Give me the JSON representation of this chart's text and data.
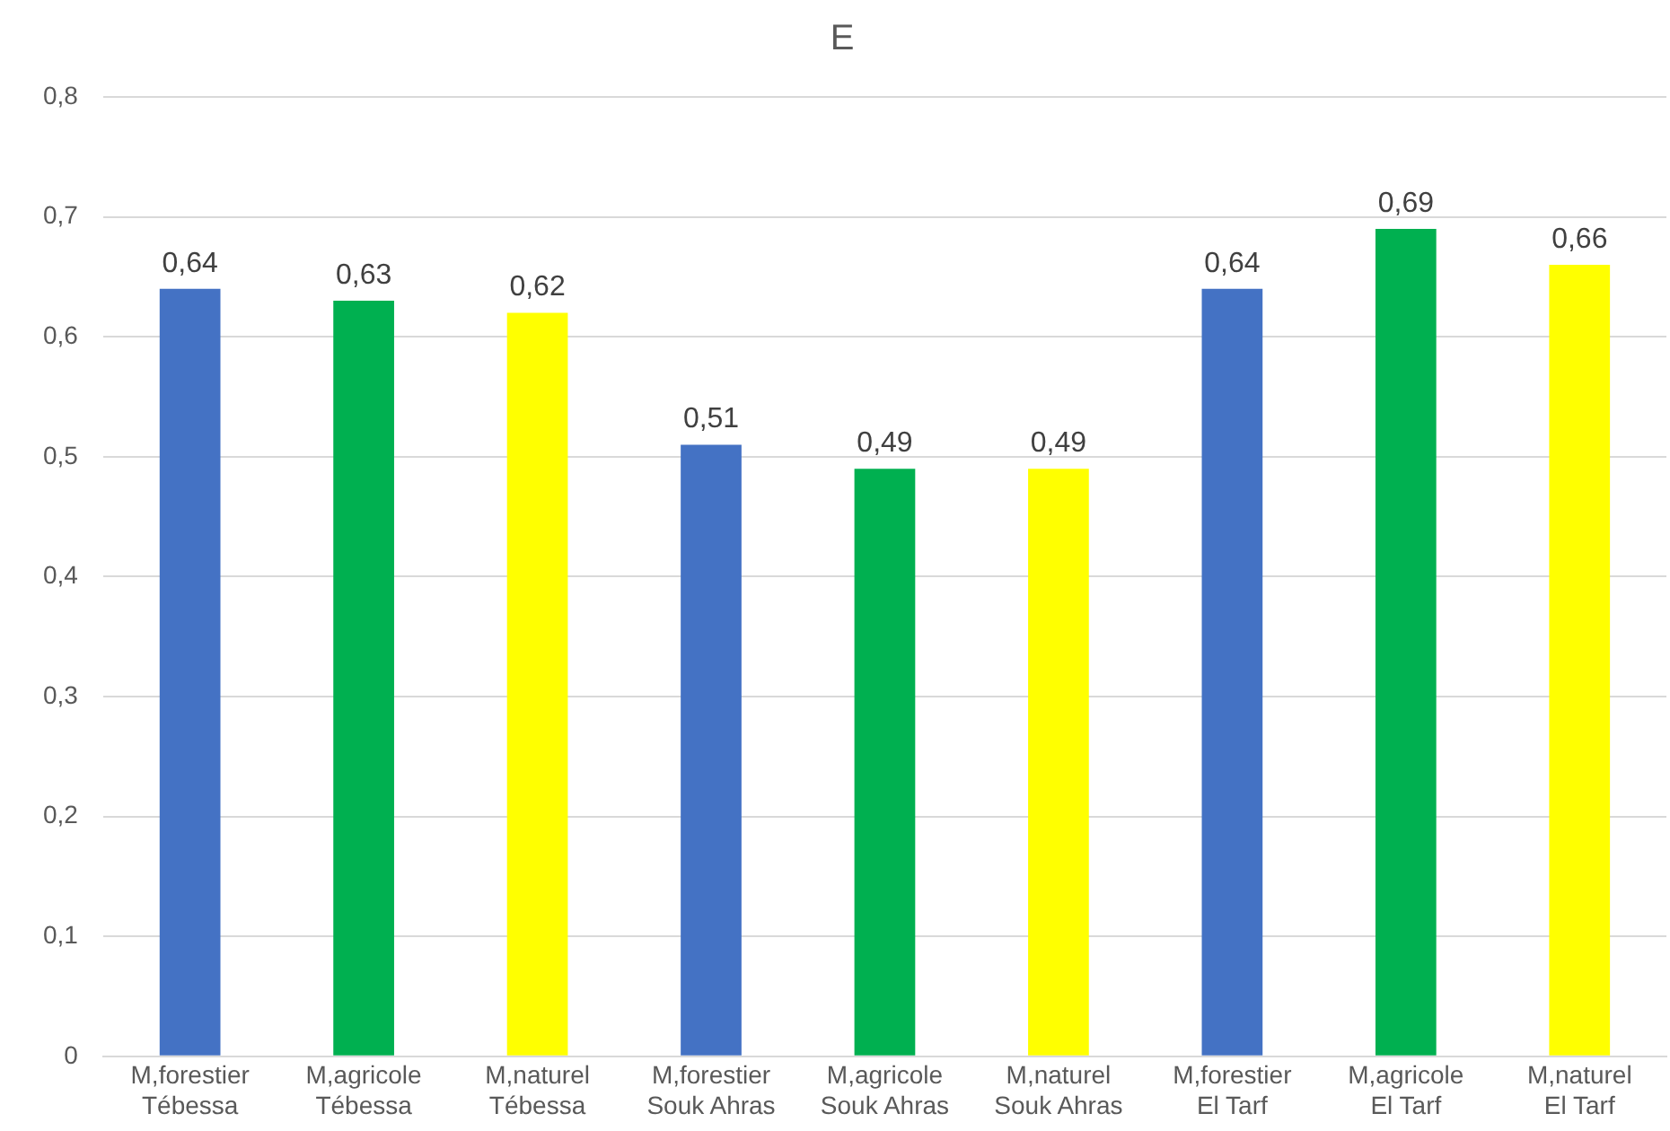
{
  "chart_data": {
    "type": "bar",
    "title": "E",
    "categories": [
      "M,forestier\nTébessa",
      "M,agricole\nTébessa",
      "M,naturel\nTébessa",
      "M,forestier\nSouk Ahras",
      "M,agricole\nSouk Ahras",
      "M,naturel\nSouk Ahras",
      "M,forestier\nEl Tarf",
      "M,agricole\nEl Tarf",
      "M,naturel\nEl Tarf"
    ],
    "values": [
      0.64,
      0.63,
      0.62,
      0.51,
      0.49,
      0.49,
      0.64,
      0.69,
      0.66
    ],
    "value_labels": [
      "0,64",
      "0,63",
      "0,62",
      "0,51",
      "0,49",
      "0,49",
      "0,64",
      "0,69",
      "0,66"
    ],
    "colors": [
      "#4472c4",
      "#00b050",
      "#ffff00",
      "#4472c4",
      "#00b050",
      "#ffff00",
      "#4472c4",
      "#00b050",
      "#ffff00"
    ],
    "ylim": [
      0,
      0.8
    ],
    "yticks": [
      0,
      {
        "value": 0.1,
        "label": "0,1"
      },
      {
        "value": 0.2,
        "label": "0,2"
      },
      {
        "value": 0.3,
        "label": "0,3"
      },
      {
        "value": 0.4,
        "label": "0,4"
      },
      {
        "value": 0.5,
        "label": "0,5"
      },
      {
        "value": 0.6,
        "label": "0,6"
      },
      {
        "value": 0.7,
        "label": "0,7"
      },
      {
        "value": 0.8,
        "label": "0,8"
      }
    ],
    "grid": "y",
    "legend": false
  }
}
